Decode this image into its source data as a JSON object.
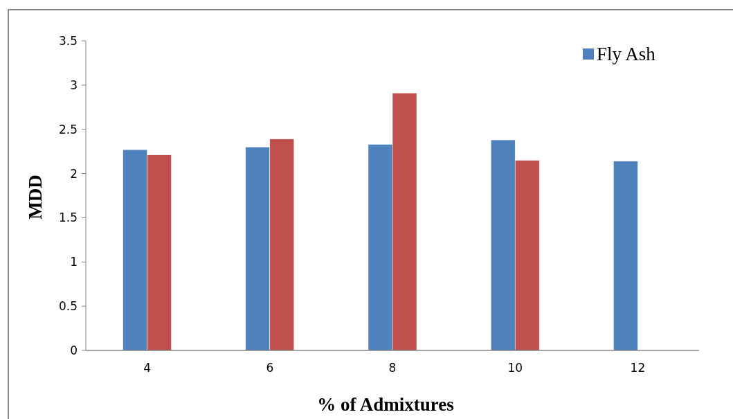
{
  "chart_data": {
    "type": "bar",
    "xlabel": "% of Admixtures",
    "ylabel": "MDD",
    "categories": [
      "4",
      "6",
      "8",
      "10",
      "12"
    ],
    "series": [
      {
        "name": "Fly Ash",
        "color": "#4f81bd",
        "values": [
          2.27,
          2.3,
          2.33,
          2.38,
          2.14
        ]
      },
      {
        "color": "#c0504d",
        "values": [
          2.21,
          2.39,
          2.91,
          2.15,
          null
        ]
      }
    ],
    "ylim": [
      0,
      3.5
    ],
    "yticks": [
      0,
      0.5,
      1,
      1.5,
      2,
      2.5,
      3,
      3.5
    ],
    "grid": false,
    "legend": "top right"
  }
}
